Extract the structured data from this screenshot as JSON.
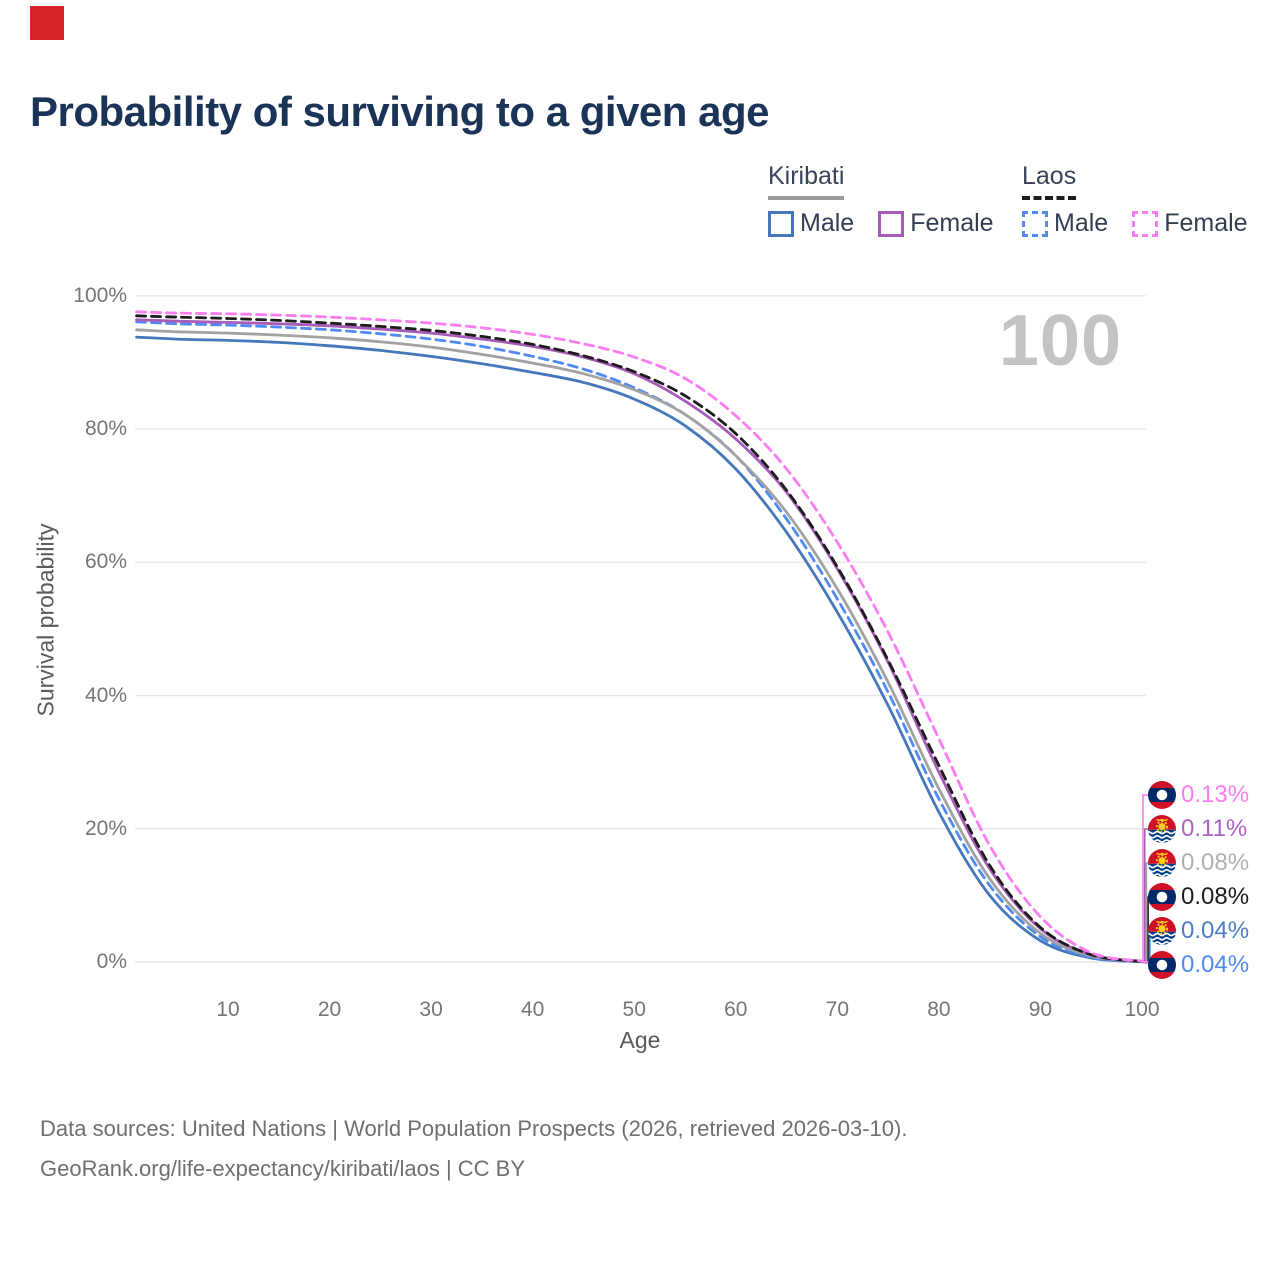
{
  "annotation": {
    "color": "#d7232c"
  },
  "title": "Probability of surviving to a given age",
  "watermark": "100",
  "legend": {
    "groups": [
      {
        "title": "Kiribati",
        "line_style": "solid",
        "underline_color": "#9b9b9b",
        "items": [
          {
            "label": "Male",
            "color": "#4577bb"
          },
          {
            "label": "Female",
            "color": "#a75cb8"
          }
        ]
      },
      {
        "title": "Laos",
        "line_style": "dashed",
        "underline_color": "#1d1d1d",
        "items": [
          {
            "label": "Male",
            "color": "#4f8bf2"
          },
          {
            "label": "Female",
            "color": "#fb7df2"
          }
        ]
      }
    ]
  },
  "axes": {
    "x_label": "Age",
    "y_label": "Survival probability"
  },
  "chart_data": {
    "type": "line",
    "title": "Probability of surviving to a given age",
    "xlabel": "Age",
    "ylabel": "Survival probability",
    "xlim": [
      1,
      105
    ],
    "ylim": [
      0,
      100
    ],
    "grid": "horizontal",
    "legend_position": "top-right",
    "x_ticks": [
      10,
      20,
      30,
      40,
      50,
      60,
      70,
      80,
      90,
      100
    ],
    "y_ticks": [
      0,
      20,
      40,
      60,
      80,
      100
    ],
    "y_tick_suffix": "%",
    "ages": [
      1,
      5,
      10,
      15,
      20,
      25,
      30,
      35,
      40,
      45,
      50,
      55,
      60,
      65,
      70,
      75,
      80,
      85,
      90,
      95,
      100
    ],
    "series": [
      {
        "key": "kiribati_male",
        "name": "Kiribati Male",
        "country": "Kiribati",
        "sex": "Male",
        "color": "#4577bb",
        "dashed": false,
        "end_label": "0.04%",
        "values": [
          93.8,
          93.5,
          93.3,
          93.0,
          92.5,
          91.8,
          90.9,
          89.8,
          88.5,
          87.0,
          84.5,
          80.5,
          74.0,
          64.5,
          52.5,
          38.5,
          22.5,
          10.0,
          3.2,
          0.6,
          0.04
        ]
      },
      {
        "key": "laos_male",
        "name": "Laos Male",
        "country": "Laos",
        "sex": "Male",
        "color": "#4f8bf2",
        "dashed": true,
        "end_label": "0.04%",
        "values": [
          96.1,
          95.8,
          95.6,
          95.3,
          94.9,
          94.3,
          93.5,
          92.4,
          90.9,
          89.0,
          86.2,
          82.2,
          76.0,
          66.5,
          54.5,
          40.5,
          24.5,
          11.5,
          3.8,
          0.7,
          0.04
        ]
      },
      {
        "key": "kiribati_all",
        "name": "Kiribati",
        "country": "Kiribati",
        "sex": "Both",
        "color": "#a2a2a2",
        "dashed": false,
        "end_label": "0.08%",
        "values": [
          94.9,
          94.6,
          94.4,
          94.1,
          93.7,
          93.1,
          92.3,
          91.2,
          89.9,
          88.3,
          85.9,
          82.2,
          76.0,
          67.5,
          56.0,
          42.0,
          26.0,
          12.5,
          4.3,
          0.9,
          0.08
        ]
      },
      {
        "key": "kiribati_female",
        "name": "Kiribati Female",
        "country": "Kiribati",
        "sex": "Female",
        "color": "#a75cb8",
        "dashed": false,
        "end_label": "0.11%",
        "values": [
          96.4,
          96.2,
          96.0,
          95.8,
          95.5,
          95.0,
          94.4,
          93.5,
          92.4,
          90.8,
          88.3,
          84.2,
          78.5,
          70.5,
          59.0,
          45.0,
          28.5,
          14.0,
          5.0,
          1.1,
          0.11
        ]
      },
      {
        "key": "laos_all",
        "name": "Laos",
        "country": "Laos",
        "sex": "Both",
        "color": "#1d1d1d",
        "dashed": true,
        "end_label": "0.08%",
        "values": [
          97.0,
          96.8,
          96.6,
          96.3,
          95.9,
          95.4,
          94.8,
          93.9,
          92.7,
          91.0,
          88.6,
          85.0,
          79.3,
          70.8,
          59.3,
          45.3,
          29.5,
          14.5,
          5.2,
          1.1,
          0.08
        ]
      },
      {
        "key": "laos_female",
        "name": "Laos Female",
        "country": "Laos",
        "sex": "Female",
        "color": "#fb7df2",
        "dashed": true,
        "end_label": "0.13%",
        "values": [
          97.6,
          97.4,
          97.3,
          97.1,
          96.8,
          96.4,
          95.9,
          95.2,
          94.2,
          92.8,
          90.8,
          87.6,
          82.0,
          74.0,
          63.0,
          49.5,
          33.5,
          17.5,
          6.8,
          1.4,
          0.13
        ]
      }
    ]
  },
  "end_labels": [
    {
      "series": "laos_female",
      "flag": "laos",
      "value": "0.13%",
      "color": "#fb7df2"
    },
    {
      "series": "kiribati_female",
      "flag": "kiribati",
      "value": "0.11%",
      "color": "#ab64c2"
    },
    {
      "series": "kiribati_all",
      "flag": "kiribati",
      "value": "0.08%",
      "color": "#b1afb3"
    },
    {
      "series": "laos_all",
      "flag": "laos",
      "value": "0.08%",
      "color": "#1d1d1d"
    },
    {
      "series": "kiribati_male",
      "flag": "kiribati",
      "value": "0.04%",
      "color": "#4e7ec8"
    },
    {
      "series": "laos_male",
      "flag": "laos",
      "value": "0.04%",
      "color": "#4f8bf2"
    }
  ],
  "footer": {
    "line1": "Data sources: United Nations | World Population Prospects (2026, retrieved 2026-03-10).",
    "line2": "GeoRank.org/life-expectancy/kiribati/laos | CC BY"
  }
}
